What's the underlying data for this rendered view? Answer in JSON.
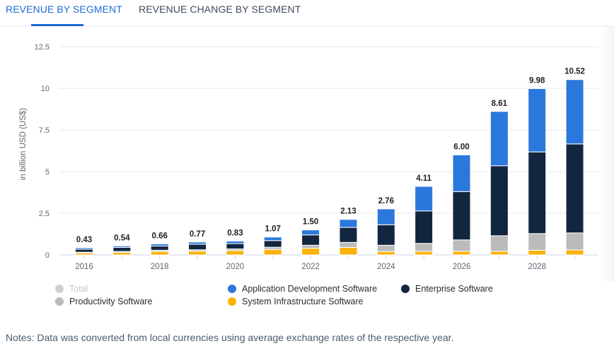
{
  "tabs": [
    {
      "label": "REVENUE BY SEGMENT",
      "active": true
    },
    {
      "label": "REVENUE CHANGE BY SEGMENT",
      "active": false
    }
  ],
  "notes": "Notes: Data was converted from local currencies using average exchange rates of the respective year.",
  "colors": {
    "app_dev": "#2b78dd",
    "enterprise": "#12263f",
    "productivity": "#bbbbbb",
    "system_infra": "#fbb20a",
    "total_legend": "#cfcfcf",
    "grid": "#e4e7eb",
    "tick_text": "#5f6670",
    "label_text": "#1f1f1f"
  },
  "chart_data": {
    "type": "bar",
    "stacked": true,
    "title": "",
    "xlabel": "",
    "ylabel": "in billion USD (US$)",
    "ylim": [
      0,
      12.5
    ],
    "yticks": [
      0,
      2.5,
      5,
      7.5,
      10,
      12.5
    ],
    "ytick_labels": [
      "0",
      "2.5",
      "5",
      "7.5",
      "10",
      "12.5"
    ],
    "grid": true,
    "categories": [
      "2016",
      "2017",
      "2018",
      "2019",
      "2020",
      "2021",
      "2022",
      "2023",
      "2024",
      "2025",
      "2026",
      "2027",
      "2028",
      "2029"
    ],
    "xtick_labels": [
      "2016",
      "",
      "2018",
      "",
      "2020",
      "",
      "2022",
      "",
      "2024",
      "",
      "2026",
      "",
      "2028",
      ""
    ],
    "totals": [
      0.43,
      0.54,
      0.66,
      0.77,
      0.83,
      1.07,
      1.5,
      2.13,
      2.76,
      4.11,
      6.0,
      8.61,
      9.98,
      10.52
    ],
    "total_labels": [
      "0.43",
      "0.54",
      "0.66",
      "0.77",
      "0.83",
      "1.07",
      "1.50",
      "2.13",
      "2.76",
      "4.11",
      "6.00",
      "8.61",
      "9.98",
      "10.52"
    ],
    "series": [
      {
        "name": "System Infrastructure Software",
        "key": "system_infra",
        "values": [
          0.12,
          0.15,
          0.2,
          0.22,
          0.26,
          0.33,
          0.4,
          0.45,
          0.2,
          0.21,
          0.22,
          0.22,
          0.28,
          0.3
        ]
      },
      {
        "name": "Productivity Software",
        "key": "productivity",
        "values": [
          0.04,
          0.06,
          0.08,
          0.09,
          0.1,
          0.13,
          0.18,
          0.3,
          0.38,
          0.48,
          0.68,
          0.93,
          1.0,
          1.02
        ]
      },
      {
        "name": "Enterprise Software",
        "key": "enterprise",
        "values": [
          0.18,
          0.24,
          0.25,
          0.33,
          0.32,
          0.4,
          0.62,
          0.9,
          1.23,
          1.95,
          2.9,
          4.2,
          4.9,
          5.34
        ]
      },
      {
        "name": "Application Development Software",
        "key": "app_dev",
        "values": [
          0.09,
          0.09,
          0.13,
          0.13,
          0.15,
          0.21,
          0.3,
          0.48,
          0.95,
          1.47,
          2.2,
          3.26,
          3.8,
          3.86
        ]
      }
    ],
    "legend": [
      {
        "name": "Total",
        "key": "total_legend",
        "disabled": true
      },
      {
        "name": "Productivity Software",
        "key": "productivity"
      },
      {
        "name": "Application Development Software",
        "key": "app_dev"
      },
      {
        "name": "System Infrastructure Software",
        "key": "system_infra"
      },
      {
        "name": "Enterprise Software",
        "key": "enterprise"
      }
    ],
    "legend_position": "bottom"
  }
}
